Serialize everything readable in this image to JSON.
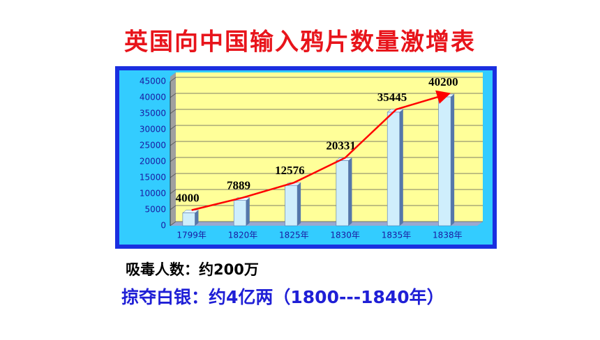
{
  "chart_data": {
    "type": "bar",
    "title": "英国向中国输入鸦片数量激增表",
    "categories": [
      "1799年",
      "1820年",
      "1825年",
      "1830年",
      "1835年",
      "1838年"
    ],
    "values": [
      4000,
      7889,
      12576,
      20331,
      35445,
      40200
    ],
    "color": "#cfeefc",
    "line_color": "#ff0000",
    "ylim": [
      0,
      45000
    ],
    "yticks": [
      0,
      5000,
      10000,
      15000,
      20000,
      25000,
      30000,
      35000,
      40000,
      45000
    ],
    "grid": true,
    "annotations": [
      "吸毒人数：约200万",
      "掠夺白银：约4亿两（1800---1840年）"
    ]
  }
}
